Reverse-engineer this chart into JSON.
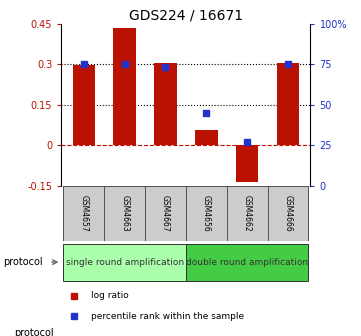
{
  "title": "GDS224 / 16671",
  "samples": [
    "GSM4657",
    "GSM4663",
    "GSM4667",
    "GSM4656",
    "GSM4662",
    "GSM4666"
  ],
  "log_ratio": [
    0.295,
    0.435,
    0.305,
    0.055,
    -0.135,
    0.305
  ],
  "percentile_rank": [
    75.0,
    75.0,
    73.0,
    45.0,
    27.0,
    75.0
  ],
  "ylim_left": [
    -0.15,
    0.45
  ],
  "ylim_right": [
    0,
    100
  ],
  "yticks_left": [
    -0.15,
    0.0,
    0.15,
    0.3,
    0.45
  ],
  "ytick_labels_left": [
    "-0.15",
    "0",
    "0.15",
    "0.3",
    "0.45"
  ],
  "yticks_right": [
    0,
    25,
    50,
    75,
    100
  ],
  "ytick_labels_right": [
    "0",
    "25",
    "50",
    "75",
    "100%"
  ],
  "hlines_dotted": [
    0.15,
    0.3
  ],
  "hline_dashed": 0.0,
  "bar_color": "#bb1100",
  "dot_color": "#2233cc",
  "protocol_groups": [
    {
      "label": "single round amplification",
      "start": 0,
      "end": 3,
      "color": "#aaffaa"
    },
    {
      "label": "double round amplification",
      "start": 3,
      "end": 6,
      "color": "#44cc44"
    }
  ],
  "protocol_label": "protocol",
  "legend_items": [
    {
      "label": "log ratio",
      "color": "#bb1100"
    },
    {
      "label": "percentile rank within the sample",
      "color": "#2233cc"
    }
  ],
  "bar_width": 0.55,
  "title_fontsize": 10,
  "tick_fontsize": 7,
  "label_fontsize": 7,
  "sample_fontsize": 5.5,
  "protocol_fontsize": 6.5,
  "legend_fontsize": 6.5
}
